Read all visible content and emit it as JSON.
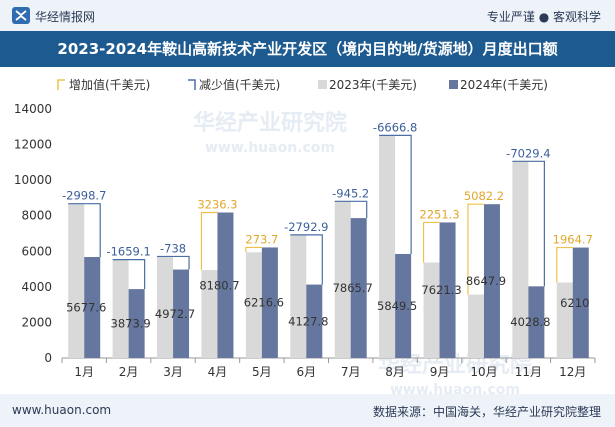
{
  "header": {
    "site_name": "华经情报网",
    "tagline": "专业严谨 ● 客观科学"
  },
  "footer": {
    "website": "www.huaon.com",
    "source": "数据来源：中国海关，华经产业研究院整理"
  },
  "watermark": {
    "text": "华经产业研究院",
    "url": "www.huaon.com"
  },
  "colors": {
    "increase": "#f0c04a",
    "decrease": "#4a6fa5",
    "series_2023": "#d9d9d9",
    "series_2024": "#66779f",
    "title_bar": "#1d5a8f",
    "label_increase": "#e0a72b",
    "label_decrease": "#3b5f9a"
  },
  "chart_data": {
    "type": "bar",
    "title": "2023-2024年鞍山高新技术产业开发区（境内目的地/货源地）月度出口额",
    "categories": [
      "1月",
      "2月",
      "3月",
      "4月",
      "5月",
      "6月",
      "7月",
      "8月",
      "9月",
      "10月",
      "11月",
      "12月"
    ],
    "series": [
      {
        "name": "2023年(千美元)",
        "values": [
          8676.3,
          5533.0,
          5710.7,
          4944.4,
          5942.9,
          6920.6,
          8810.9,
          12516.3,
          5370.0,
          3565.7,
          11058.2,
          4245.3
        ]
      },
      {
        "name": "2024年(千美元)",
        "values": [
          5677.6,
          3873.9,
          4972.7,
          8180.7,
          6216.6,
          4127.8,
          7865.7,
          5849.5,
          7621.3,
          8647.9,
          4028.8,
          6210
        ]
      }
    ],
    "differences": [
      -2998.7,
      -1659.1,
      -738,
      3236.3,
      273.7,
      -2792.9,
      -945.2,
      -6666.8,
      2251.3,
      5082.2,
      -7029.4,
      1964.7
    ],
    "difference_labels": [
      "-2998.7",
      "-1659.1",
      "-738",
      "3236.3",
      "273.7",
      "-2792.9",
      "-945.2",
      "-6666.8",
      "2251.3",
      "5082.2",
      "-7029.4",
      "1964.7"
    ],
    "value_labels_2024": [
      "5677.6",
      "3873.9",
      "4972.7",
      "8180.7",
      "6216.6",
      "4127.8",
      "7865.7",
      "5849.5",
      "7621.3",
      "8647.9",
      "4028.8",
      "6210"
    ],
    "legend": [
      "增加值(千美元)",
      "减少值(千美元)",
      "2023年(千美元)",
      "2024年(千美元)"
    ],
    "legend_position": "top-left",
    "ylim": [
      0,
      14000
    ],
    "yticks": [
      0,
      2000,
      4000,
      6000,
      8000,
      10000,
      12000,
      14000
    ],
    "grid": false
  }
}
